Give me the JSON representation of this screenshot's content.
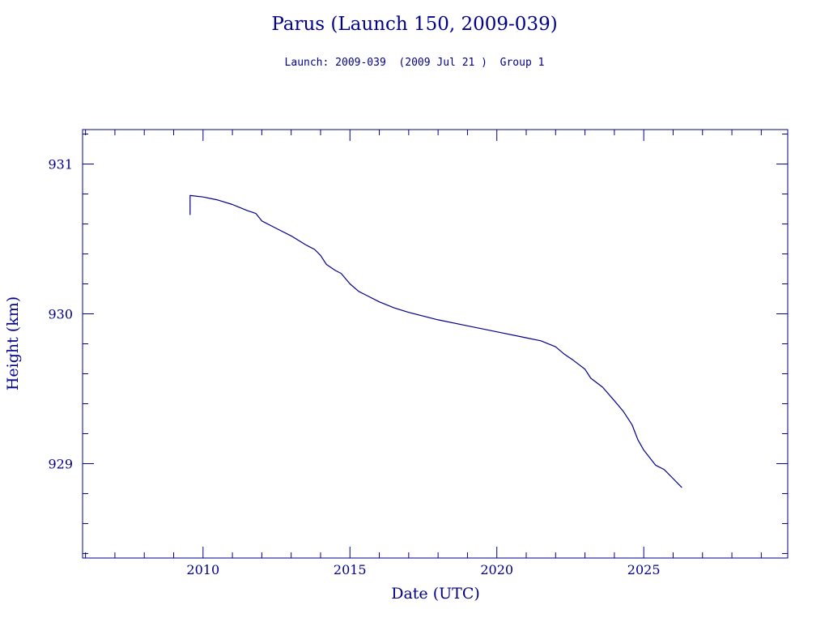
{
  "colors": {
    "ink": "#00008b",
    "background": "#ffffff"
  },
  "chart_data": {
    "type": "line",
    "title": "Parus (Launch 150, 2009-039)",
    "subtitle": "Launch: 2009-039  (2009 Jul 21 )  Group 1",
    "xlabel": "Date (UTC)",
    "ylabel": "Height (km)",
    "xlim": [
      2005.9,
      2029.9
    ],
    "ylim": [
      928.37,
      931.23
    ],
    "x_ticks": [
      2010,
      2015,
      2020,
      2025
    ],
    "y_ticks": [
      929,
      930,
      931
    ],
    "grid": false,
    "series": [
      {
        "x": [
          2009.56,
          2009.56,
          2009.57,
          2010.0,
          2010.5,
          2011.0,
          2011.5,
          2011.8,
          2012.0,
          2012.5,
          2013.0,
          2013.5,
          2013.8,
          2014.0,
          2014.2,
          2014.5,
          2014.7,
          2015.0,
          2015.3,
          2015.5,
          2016.0,
          2016.5,
          2017.0,
          2018.0,
          2019.0,
          2020.0,
          2021.0,
          2021.5,
          2022.0,
          2022.3,
          2022.6,
          2023.0,
          2023.2,
          2023.6,
          2024.0,
          2024.3,
          2024.6,
          2024.8,
          2025.0,
          2025.4,
          2025.7,
          2026.0,
          2026.3
        ],
        "y": [
          930.66,
          930.79,
          930.79,
          930.78,
          930.76,
          930.73,
          930.69,
          930.67,
          930.62,
          930.57,
          930.52,
          930.46,
          930.43,
          930.39,
          930.33,
          930.29,
          930.27,
          930.2,
          930.15,
          930.13,
          930.08,
          930.04,
          930.01,
          929.96,
          929.92,
          929.88,
          929.84,
          929.82,
          929.78,
          929.73,
          929.69,
          929.63,
          929.57,
          929.51,
          929.42,
          929.35,
          929.26,
          929.16,
          929.09,
          928.99,
          928.96,
          928.9,
          928.84
        ]
      }
    ]
  }
}
